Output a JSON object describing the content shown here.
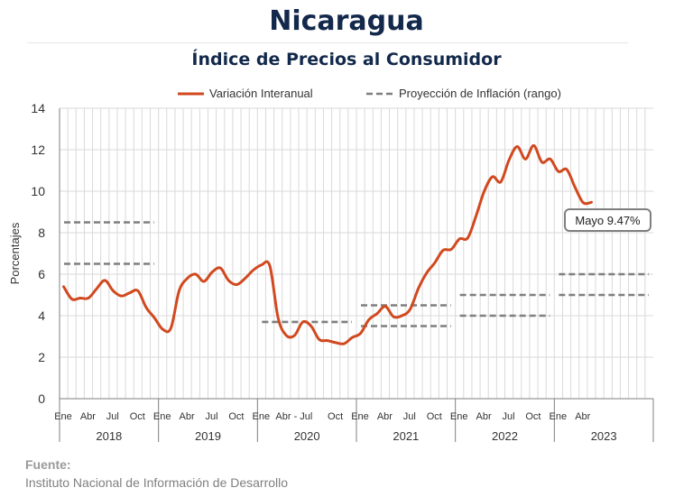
{
  "header": {
    "title": "Nicaragua",
    "subtitle": "Índice de Precios al Consumidor"
  },
  "source": {
    "label": "Fuente:",
    "text": "Instituto Nacional de Información de  Desarrollo"
  },
  "colors": {
    "series": "#d1491f",
    "projection": "#7f7f7f",
    "grid": "#d9d9d9",
    "title": "#13294b"
  },
  "chart_data": {
    "type": "line",
    "ylabel": "Porcentajes",
    "ylim": [
      0,
      14
    ],
    "yticks": [
      0,
      2,
      4,
      6,
      8,
      10,
      12,
      14
    ],
    "grid": "vertical and horizontal",
    "legend_position": "top",
    "legend": [
      {
        "name": "Variación Interanual",
        "style": "solid"
      },
      {
        "name": "Proyección de Inflación (rango)",
        "style": "dashed"
      }
    ],
    "month_tick_labels": [
      "Ene",
      "Abr",
      "Jul",
      "Oct",
      "Ene",
      "Abr",
      "Jul",
      "Oct",
      "Ene",
      "Abr - Jul",
      "Oct",
      "Ene",
      "Abr",
      "Jul",
      "Oct",
      "Ene",
      "Abr",
      "Jul",
      "Oct",
      "Ene",
      "Abr"
    ],
    "years": [
      "2018",
      "2019",
      "2020",
      "2021",
      "2022",
      "2023"
    ],
    "x_start": "2018-01",
    "x_end": "2023-05",
    "series": [
      {
        "name": "Variación Interanual",
        "values": [
          5.4,
          4.8,
          4.85,
          4.85,
          5.3,
          5.7,
          5.2,
          4.95,
          5.1,
          5.2,
          4.4,
          3.9,
          3.35,
          3.4,
          5.2,
          5.8,
          6.0,
          5.65,
          6.1,
          6.3,
          5.7,
          5.5,
          5.8,
          6.2,
          6.45,
          6.4,
          3.9,
          3.05,
          3.05,
          3.7,
          3.5,
          2.85,
          2.8,
          2.7,
          2.65,
          2.95,
          3.15,
          3.8,
          4.1,
          4.45,
          3.95,
          4.0,
          4.3,
          5.3,
          6.05,
          6.55,
          7.15,
          7.2,
          7.7,
          7.75,
          8.8,
          10.0,
          10.7,
          10.45,
          11.5,
          12.15,
          11.55,
          12.2,
          11.4,
          11.55,
          10.95,
          11.05,
          10.2,
          9.45,
          9.47
        ]
      }
    ],
    "projection_ranges": [
      {
        "year": "2018",
        "low": 6.5,
        "high": 8.5
      },
      {
        "year": "2020",
        "low": 3.7,
        "high": 3.7
      },
      {
        "year": "2021",
        "low": 3.5,
        "high": 4.5
      },
      {
        "year": "2022",
        "low": 4.0,
        "high": 5.0
      },
      {
        "year": "2023",
        "low": 5.0,
        "high": 6.0
      }
    ],
    "annotation": {
      "label": "Mayo 9.47%",
      "x": "2023-05",
      "value": 9.47
    }
  }
}
